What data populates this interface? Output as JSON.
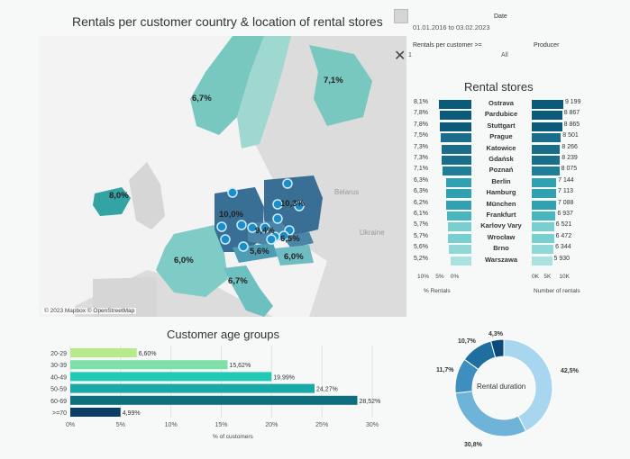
{
  "map_title": "Rentals per customer country  & location of rental stores",
  "map_attribution": "© 2023 Mapbox © OpenStreetMap",
  "map_country_labels": {
    "norway": "6,7%",
    "finland": "7,1%",
    "ireland": "8,0%",
    "germany": "10,0%",
    "poland": "10,3%",
    "czechia": "9,4%",
    "slovakia": "6,5%",
    "austria": "5,6%",
    "hungary": "6,0%",
    "france": "6,0%",
    "italy": "6,7%",
    "belarus": "Belarus",
    "ukraine": "Ukraine"
  },
  "filters": {
    "date_label": "Date",
    "date_value": "01.01.2016 to 03.02.2023",
    "rentals_label": "Rentals per customer >=",
    "rentals_value": "1",
    "producer_label": "Producer",
    "producer_value": "All"
  },
  "rental_stores": {
    "title": "Rental stores",
    "rows": [
      {
        "pct": "8,1%",
        "pct_val": 8.1,
        "name": "Ostrava",
        "count": "9 199",
        "count_val": 9199
      },
      {
        "pct": "7,8%",
        "pct_val": 7.8,
        "name": "Pardubice",
        "count": "8 867",
        "count_val": 8867
      },
      {
        "pct": "7,8%",
        "pct_val": 7.8,
        "name": "Stuttgart",
        "count": "8 865",
        "count_val": 8865
      },
      {
        "pct": "7,5%",
        "pct_val": 7.5,
        "name": "Prague",
        "count": "8 501",
        "count_val": 8501
      },
      {
        "pct": "7,3%",
        "pct_val": 7.3,
        "name": "Katowice",
        "count": "8 266",
        "count_val": 8266
      },
      {
        "pct": "7,3%",
        "pct_val": 7.3,
        "name": "Gdańsk",
        "count": "8 239",
        "count_val": 8239
      },
      {
        "pct": "7,1%",
        "pct_val": 7.1,
        "name": "Poznań",
        "count": "8 075",
        "count_val": 8075
      },
      {
        "pct": "6,3%",
        "pct_val": 6.3,
        "name": "Berlin",
        "count": "7 144",
        "count_val": 7144
      },
      {
        "pct": "6,3%",
        "pct_val": 6.3,
        "name": "Hamburg",
        "count": "7 113",
        "count_val": 7113
      },
      {
        "pct": "6,2%",
        "pct_val": 6.2,
        "name": "München",
        "count": "7 088",
        "count_val": 7088
      },
      {
        "pct": "6,1%",
        "pct_val": 6.1,
        "name": "Frankfurt",
        "count": "6 937",
        "count_val": 6937
      },
      {
        "pct": "5,7%",
        "pct_val": 5.7,
        "name": "Karlovy Vary",
        "count": "6 521",
        "count_val": 6521
      },
      {
        "pct": "5,7%",
        "pct_val": 5.7,
        "name": "Wrocław",
        "count": "6 472",
        "count_val": 6472
      },
      {
        "pct": "5,6%",
        "pct_val": 5.6,
        "name": "Brno",
        "count": "6 344",
        "count_val": 6344
      },
      {
        "pct": "5,2%",
        "pct_val": 5.2,
        "name": "Warszawa",
        "count": "5 930",
        "count_val": 5930
      }
    ],
    "left_ticks": [
      "10%",
      "5%",
      "0%"
    ],
    "right_ticks": [
      "0K",
      "5K",
      "10K"
    ],
    "left_axis_label": "% Rentals",
    "right_axis_label": "Number of rentals"
  },
  "chart_data": [
    {
      "type": "bar",
      "title": "Customer age groups",
      "categories": [
        "20-29",
        "30-39",
        "40-49",
        "50-59",
        "60-69",
        ">=70"
      ],
      "values": [
        6.6,
        15.62,
        19.99,
        24.27,
        28.52,
        4.99
      ],
      "value_labels": [
        "6,60%",
        "15,62%",
        "19,99%",
        "24,27%",
        "28,52%",
        "4,99%"
      ],
      "xlabel": "% of customers",
      "xticks": [
        "0%",
        "5%",
        "10%",
        "15%",
        "20%",
        "25%",
        "30%"
      ],
      "xlim": [
        0,
        30
      ],
      "colors": [
        "#b6ea8a",
        "#7fdfa9",
        "#22c9b5",
        "#1aa9a9",
        "#0f6f7f",
        "#0b3d66"
      ]
    },
    {
      "type": "pie",
      "title": "Rental duration",
      "values": [
        42.5,
        30.8,
        11.7,
        10.7,
        4.3
      ],
      "value_labels": [
        "42,5%",
        "30,8%",
        "11,7%",
        "10,7%",
        "4,3%"
      ],
      "colors": [
        "#a7d6ee",
        "#6fb3d8",
        "#3e8fc0",
        "#1f6ea0",
        "#0b4a7a"
      ]
    }
  ]
}
